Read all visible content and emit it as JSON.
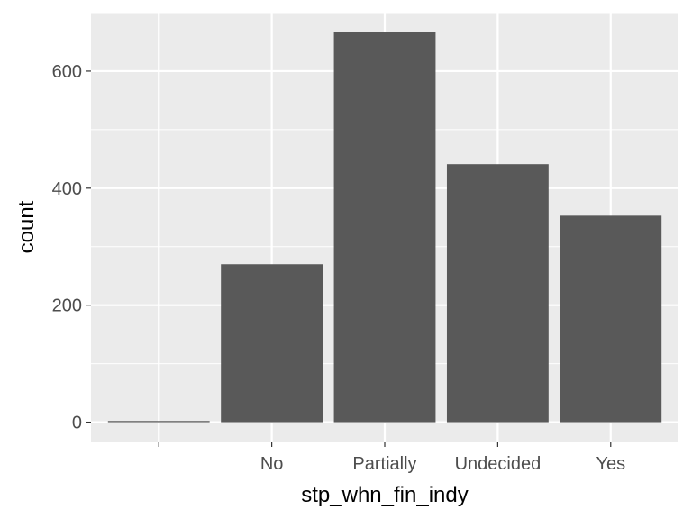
{
  "chart_data": {
    "type": "bar",
    "categories": [
      "",
      "No",
      "Partially",
      "Undecided",
      "Yes"
    ],
    "values": [
      2,
      270,
      667,
      441,
      353
    ],
    "xlabel": "stp_whn_fin_indy",
    "ylabel": "count",
    "ylim": [
      -33,
      700
    ],
    "yticks": [
      0,
      200,
      400,
      600
    ],
    "grid": true,
    "colors": {
      "panel": "#EBEBEB",
      "bar": "#595959",
      "grid": "#FFFFFF",
      "tick_text": "#4D4D4D",
      "tick_mark": "#333333"
    }
  }
}
